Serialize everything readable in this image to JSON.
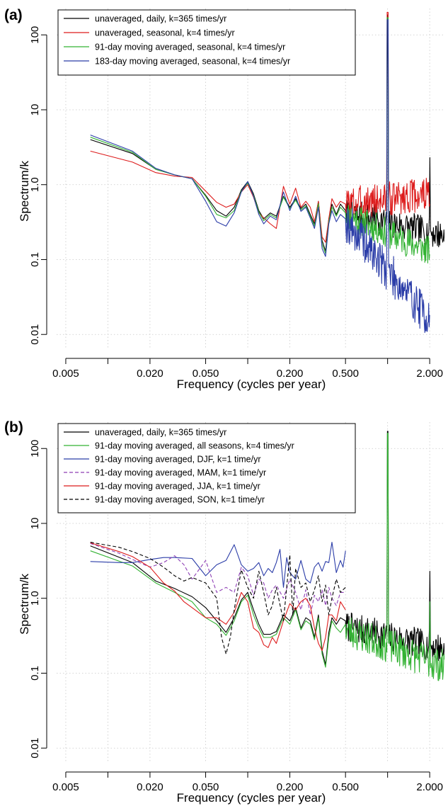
{
  "chart_data": [
    {
      "type": "line",
      "panel_label": "(a)",
      "xlabel": "Frequency (cycles per year)",
      "ylabel": "Spectrum/k",
      "x_scale": "log",
      "y_scale": "log",
      "xlim": [
        0.0043,
        2.55
      ],
      "ylim": [
        0.0065,
        225
      ],
      "x_ticks": [
        0.005,
        0.01,
        0.02,
        0.05,
        0.1,
        0.2,
        0.5,
        1,
        2
      ],
      "x_tick_labels": [
        "0.005",
        "",
        "0.020",
        "0.050",
        "",
        "0.200",
        "0.500",
        "",
        "2.000"
      ],
      "y_ticks": [
        0.01,
        0.1,
        1,
        10,
        100
      ],
      "y_tick_labels": [
        "0.01",
        "0.1",
        "1.0",
        "10",
        "100"
      ],
      "grid": true,
      "legend_position": "top-left",
      "series": [
        {
          "name": "unaveraged, daily, k=365 times/yr",
          "color": "#000000",
          "dash": "solid",
          "kind": "daily",
          "x": [
            0.0075,
            0.015,
            0.022,
            0.03,
            0.04,
            0.05,
            0.06,
            0.07,
            0.08,
            0.09,
            0.1,
            0.11,
            0.12,
            0.13,
            0.145,
            0.16,
            0.18,
            0.2,
            0.22,
            0.24,
            0.26,
            0.28,
            0.3,
            0.32,
            0.34,
            0.36,
            0.38,
            0.4,
            0.43,
            0.46,
            0.5
          ],
          "y": [
            4.0,
            2.6,
            1.6,
            1.35,
            1.2,
            0.72,
            0.45,
            0.38,
            0.5,
            0.85,
            1.1,
            0.75,
            0.45,
            0.35,
            0.42,
            0.38,
            0.7,
            0.5,
            0.65,
            0.48,
            0.55,
            0.4,
            0.3,
            0.6,
            0.18,
            0.13,
            0.35,
            0.55,
            0.4,
            0.55,
            0.45
          ],
          "ext": {
            "seed": 7,
            "x_end": 2.55,
            "base": 0.42,
            "slope": -0.55,
            "amp": 1.6,
            "peak1": 185,
            "peak2": 2.3
          }
        },
        {
          "name": "unaveraged, seasonal, k=4 times/yr",
          "color": "#dd1c1c",
          "dash": "solid",
          "kind": "seasonal",
          "x": [
            0.0075,
            0.015,
            0.022,
            0.03,
            0.04,
            0.05,
            0.06,
            0.07,
            0.08,
            0.09,
            0.1,
            0.11,
            0.12,
            0.13,
            0.145,
            0.16,
            0.18,
            0.2,
            0.22,
            0.24,
            0.26,
            0.28,
            0.3,
            0.32,
            0.34,
            0.36,
            0.38,
            0.4,
            0.43,
            0.46,
            0.5
          ],
          "y": [
            2.8,
            2.0,
            1.45,
            1.3,
            1.25,
            0.82,
            0.58,
            0.5,
            0.55,
            0.8,
            1.0,
            0.68,
            0.42,
            0.36,
            0.3,
            0.26,
            0.95,
            0.55,
            0.9,
            0.5,
            0.6,
            0.5,
            0.32,
            0.6,
            0.2,
            0.17,
            0.35,
            0.65,
            0.5,
            0.6,
            0.55
          ],
          "ext": {
            "seed": 3,
            "x_end": 2.0,
            "base": 0.55,
            "slope": 0.25,
            "amp": 1.7,
            "peak1": 200,
            "peak2": 0
          }
        },
        {
          "name": "91-day moving averaged, seasonal, k=4 times/yr",
          "color": "#33b233",
          "dash": "solid",
          "kind": "seasonal",
          "x": [
            0.0075,
            0.015,
            0.022,
            0.03,
            0.04,
            0.05,
            0.06,
            0.07,
            0.08,
            0.09,
            0.1,
            0.11,
            0.12,
            0.13,
            0.145,
            0.16,
            0.18,
            0.2,
            0.22,
            0.24,
            0.26,
            0.28,
            0.3,
            0.32,
            0.34,
            0.36,
            0.38,
            0.4,
            0.43,
            0.46,
            0.5
          ],
          "y": [
            4.3,
            2.7,
            1.6,
            1.35,
            1.2,
            0.7,
            0.4,
            0.36,
            0.45,
            0.82,
            1.05,
            0.72,
            0.43,
            0.33,
            0.4,
            0.36,
            0.68,
            0.48,
            0.62,
            0.46,
            0.52,
            0.38,
            0.28,
            0.56,
            0.16,
            0.12,
            0.32,
            0.5,
            0.38,
            0.5,
            0.42
          ],
          "ext": {
            "seed": 11,
            "x_end": 2.0,
            "base": 0.4,
            "slope": -0.9,
            "amp": 1.6,
            "peak1": 170,
            "peak2": 0
          }
        },
        {
          "name": "183-day moving averaged, seasonal, k=4 times/yr",
          "color": "#2b3da8",
          "dash": "solid",
          "kind": "seasonal",
          "x": [
            0.0075,
            0.015,
            0.022,
            0.03,
            0.04,
            0.05,
            0.06,
            0.07,
            0.08,
            0.09,
            0.1,
            0.11,
            0.12,
            0.13,
            0.145,
            0.16,
            0.18,
            0.2,
            0.22,
            0.24,
            0.26,
            0.28,
            0.3,
            0.32,
            0.34,
            0.36,
            0.38,
            0.4,
            0.43,
            0.46,
            0.5
          ],
          "y": [
            4.6,
            2.8,
            1.65,
            1.35,
            1.2,
            0.6,
            0.32,
            0.28,
            0.42,
            0.8,
            1.1,
            0.7,
            0.4,
            0.3,
            0.38,
            0.34,
            0.8,
            0.45,
            0.7,
            0.44,
            0.5,
            0.36,
            0.26,
            0.5,
            0.14,
            0.11,
            0.3,
            0.45,
            0.32,
            0.4,
            0.35
          ],
          "ext": {
            "seed": 19,
            "x_end": 2.0,
            "base": 0.33,
            "slope": -2.4,
            "amp": 1.9,
            "peak1": 160,
            "peak2": 0
          }
        }
      ]
    },
    {
      "type": "line",
      "panel_label": "(b)",
      "xlabel": "Frequency (cycles per year)",
      "ylabel": "Spectrum/k",
      "x_scale": "log",
      "y_scale": "log",
      "xlim": [
        0.0043,
        2.55
      ],
      "ylim": [
        0.0065,
        225
      ],
      "x_ticks": [
        0.005,
        0.01,
        0.02,
        0.05,
        0.1,
        0.2,
        0.5,
        1,
        2
      ],
      "x_tick_labels": [
        "0.005",
        "",
        "0.020",
        "0.050",
        "",
        "0.200",
        "0.500",
        "",
        "2.000"
      ],
      "y_ticks": [
        0.01,
        0.1,
        1,
        10,
        100
      ],
      "y_tick_labels": [
        "0.01",
        "0.1",
        "1.0",
        "10",
        "100"
      ],
      "grid": true,
      "legend_position": "top-left",
      "series": [
        {
          "name": "unaveraged, daily, k=365 times/yr",
          "color": "#000000",
          "dash": "solid",
          "kind": "daily",
          "x": [
            0.0075,
            0.015,
            0.022,
            0.03,
            0.04,
            0.05,
            0.06,
            0.07,
            0.08,
            0.09,
            0.1,
            0.11,
            0.12,
            0.13,
            0.145,
            0.16,
            0.18,
            0.2,
            0.22,
            0.24,
            0.26,
            0.28,
            0.3,
            0.32,
            0.34,
            0.36,
            0.38,
            0.4,
            0.43,
            0.46,
            0.5
          ],
          "y": [
            5.0,
            3.0,
            1.7,
            1.35,
            1.05,
            0.75,
            0.5,
            0.35,
            0.55,
            0.95,
            1.2,
            0.7,
            0.45,
            0.33,
            0.33,
            0.36,
            0.6,
            0.5,
            0.75,
            0.4,
            0.55,
            0.5,
            0.3,
            0.6,
            0.2,
            0.13,
            0.35,
            0.55,
            0.45,
            0.55,
            0.5
          ],
          "ext": {
            "seed": 7,
            "x_end": 2.55,
            "base": 0.42,
            "slope": -0.55,
            "amp": 1.6,
            "peak1": 170,
            "peak2": 2.3
          }
        },
        {
          "name": "91-day moving averaged, all seasons, k=4 times/yr",
          "color": "#33b233",
          "dash": "solid",
          "kind": "daily",
          "x": [
            0.0075,
            0.015,
            0.022,
            0.03,
            0.04,
            0.05,
            0.06,
            0.07,
            0.08,
            0.09,
            0.1,
            0.11,
            0.12,
            0.13,
            0.145,
            0.16,
            0.18,
            0.2,
            0.22,
            0.24,
            0.26,
            0.28,
            0.3,
            0.32,
            0.34,
            0.36,
            0.38,
            0.4,
            0.43,
            0.46,
            0.5
          ],
          "y": [
            4.3,
            2.7,
            1.6,
            1.2,
            0.9,
            0.55,
            0.45,
            0.32,
            0.5,
            0.9,
            1.1,
            0.6,
            0.4,
            0.3,
            0.3,
            0.33,
            0.55,
            0.45,
            0.7,
            0.38,
            0.5,
            0.45,
            0.28,
            0.55,
            0.18,
            0.12,
            0.3,
            0.5,
            0.4,
            0.35,
            0.45
          ],
          "ext": {
            "seed": 23,
            "x_end": 2.55,
            "base": 0.38,
            "slope": -0.9,
            "amp": 1.7,
            "peak1": 160,
            "peak2": 0.9
          }
        },
        {
          "name": "91-day moving averaged, DJF, k=1 time/yr",
          "color": "#2b3da8",
          "dash": "solid",
          "kind": "season",
          "x": [
            0.0075,
            0.012,
            0.015,
            0.02,
            0.025,
            0.03,
            0.04,
            0.05,
            0.06,
            0.07,
            0.08,
            0.09,
            0.1,
            0.11,
            0.12,
            0.13,
            0.14,
            0.15,
            0.16,
            0.17,
            0.18,
            0.19,
            0.2,
            0.22,
            0.24,
            0.26,
            0.28,
            0.3,
            0.32,
            0.34,
            0.36,
            0.38,
            0.4,
            0.43,
            0.46,
            0.48,
            0.5
          ],
          "y": [
            3.1,
            3.0,
            3.0,
            3.3,
            3.5,
            3.5,
            3.4,
            2.0,
            2.8,
            3.2,
            5.2,
            2.8,
            2.3,
            2.5,
            3.0,
            2.0,
            2.5,
            2.2,
            3.0,
            4.5,
            1.4,
            3.5,
            2.2,
            1.8,
            3.2,
            1.8,
            1.6,
            2.6,
            3.0,
            2.3,
            3.1,
            3.0,
            5.6,
            2.2,
            3.2,
            2.6,
            4.3
          ]
        },
        {
          "name": "91-day moving averaged, MAM, k=1 time/yr",
          "color": "#8e3fb5",
          "dash": "dashed",
          "kind": "season",
          "x": [
            0.0075,
            0.012,
            0.015,
            0.02,
            0.025,
            0.03,
            0.035,
            0.04,
            0.05,
            0.06,
            0.07,
            0.08,
            0.09,
            0.1,
            0.11,
            0.12,
            0.13,
            0.14,
            0.15,
            0.16,
            0.18,
            0.2,
            0.22,
            0.24,
            0.26,
            0.28,
            0.3,
            0.32,
            0.34,
            0.36,
            0.38,
            0.4,
            0.43,
            0.46,
            0.5
          ],
          "y": [
            5.4,
            4.0,
            3.3,
            2.6,
            3.0,
            3.7,
            2.8,
            1.8,
            3.2,
            1.2,
            1.4,
            1.2,
            2.6,
            2.0,
            1.1,
            1.8,
            1.6,
            1.0,
            1.3,
            1.5,
            1.0,
            1.8,
            1.2,
            0.7,
            1.3,
            0.6,
            1.1,
            0.9,
            1.3,
            0.8,
            1.4,
            1.0,
            0.8,
            1.2,
            1.2
          ]
        },
        {
          "name": "91-day moving averaged, JJA, k=1 time/yr",
          "color": "#dd1c1c",
          "dash": "solid",
          "kind": "season",
          "x": [
            0.0075,
            0.012,
            0.015,
            0.02,
            0.025,
            0.03,
            0.035,
            0.04,
            0.05,
            0.06,
            0.07,
            0.08,
            0.09,
            0.1,
            0.11,
            0.12,
            0.13,
            0.14,
            0.15,
            0.16,
            0.18,
            0.2,
            0.22,
            0.24,
            0.26,
            0.28,
            0.3,
            0.32,
            0.34,
            0.36,
            0.38,
            0.4,
            0.43,
            0.46,
            0.5
          ],
          "y": [
            5.5,
            4.2,
            3.6,
            2.6,
            1.6,
            1.25,
            0.9,
            0.75,
            0.55,
            0.55,
            0.45,
            0.65,
            1.2,
            0.9,
            0.4,
            0.35,
            0.24,
            0.22,
            0.3,
            0.25,
            0.5,
            0.85,
            0.7,
            0.9,
            1.0,
            0.8,
            0.4,
            0.25,
            0.2,
            0.3,
            0.6,
            0.6,
            0.5,
            0.9,
            0.7
          ]
        },
        {
          "name": "91-day moving averaged, SON, k=1 time/yr",
          "color": "#000000",
          "dash": "dashed",
          "kind": "season",
          "x": [
            0.0075,
            0.012,
            0.015,
            0.02,
            0.025,
            0.03,
            0.035,
            0.04,
            0.05,
            0.06,
            0.065,
            0.07,
            0.075,
            0.08,
            0.09,
            0.1,
            0.11,
            0.12,
            0.13,
            0.14,
            0.15,
            0.16,
            0.18,
            0.2,
            0.21,
            0.22,
            0.24,
            0.26,
            0.28,
            0.3,
            0.32,
            0.34,
            0.36,
            0.38,
            0.4,
            0.43,
            0.46,
            0.5
          ],
          "y": [
            5.6,
            4.8,
            4.2,
            3.4,
            2.6,
            2.0,
            1.7,
            1.9,
            1.6,
            1.0,
            0.3,
            0.18,
            0.3,
            0.7,
            2.4,
            1.4,
            1.0,
            2.3,
            1.2,
            0.6,
            0.8,
            1.4,
            0.5,
            3.8,
            0.6,
            2.5,
            1.4,
            1.6,
            0.9,
            1.3,
            2.0,
            0.9,
            1.5,
            0.6,
            1.0,
            1.8,
            1.2,
            1.4
          ]
        }
      ]
    }
  ]
}
